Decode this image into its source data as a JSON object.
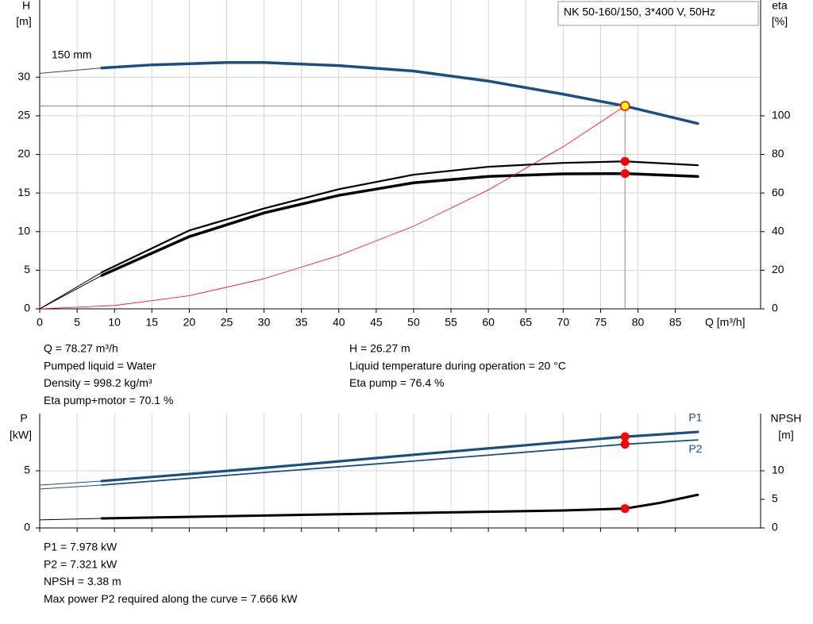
{
  "chart_data": [
    {
      "type": "line",
      "title": "NK 50-160/150, 3*400 V, 50Hz",
      "xlabel": "Q [m³/h]",
      "ylabel": "H",
      "yunit": "[m]",
      "y2label": "eta",
      "y2unit": "[%]",
      "xlim": [
        0,
        96.4
      ],
      "xticks": [
        0,
        5,
        10,
        15,
        20,
        25,
        30,
        35,
        40,
        45,
        50,
        55,
        60,
        65,
        70,
        75,
        80,
        85
      ],
      "ylim": [
        0,
        40
      ],
      "yticks": [
        0,
        5,
        10,
        15,
        20,
        25,
        30
      ],
      "y2lim": [
        0,
        160
      ],
      "y2ticks": [
        0,
        20,
        40,
        60,
        80,
        100
      ],
      "grid": true,
      "series": [
        {
          "color": "#1a4f86",
          "width": 1,
          "x": [
            0,
            8.3
          ],
          "values": [
            30.5,
            31.2
          ]
        },
        {
          "label": "150 mm",
          "color": "#1a4f86",
          "width": 3.5,
          "x": [
            8.3,
            15,
            25,
            30,
            40,
            50,
            60,
            70,
            78.27,
            88
          ],
          "values": [
            31.2,
            31.6,
            31.9,
            31.9,
            31.5,
            30.8,
            29.5,
            27.8,
            26.27,
            24.0
          ]
        },
        {
          "color": "#000000",
          "width": 1,
          "axis": "y2",
          "x": [
            0,
            8.3
          ],
          "values": [
            0,
            18.9
          ]
        },
        {
          "color": "#000000",
          "width": 1,
          "axis": "y2",
          "x": [
            0,
            8.3
          ],
          "values": [
            0,
            17.3
          ]
        },
        {
          "color": "#000000",
          "width": 2.2,
          "axis": "y2",
          "x": [
            8.3,
            20,
            30,
            40,
            50,
            60,
            70,
            78.27,
            88
          ],
          "values": [
            18.9,
            40.6,
            52,
            62,
            69.5,
            73.6,
            75.6,
            76.4,
            74.4
          ]
        },
        {
          "color": "#000000",
          "width": 3.5,
          "axis": "y2",
          "x": [
            8.3,
            20,
            30,
            40,
            50,
            60,
            70,
            78.27,
            88
          ],
          "values": [
            17.3,
            37.4,
            49.7,
            58.8,
            65.3,
            68.6,
            69.9,
            70.1,
            68.6
          ]
        },
        {
          "color": "#ff0000",
          "width": 0.8,
          "x": [
            0,
            10,
            20,
            30,
            40,
            50,
            60,
            70,
            78.27
          ],
          "values": [
            0,
            0.43,
            1.7,
            3.9,
            6.9,
            10.7,
            15.4,
            21.0,
            26.27
          ]
        },
        {
          "marker": "#ffff00",
          "edgecolor": "#ff0000",
          "guides": true,
          "x": [
            78.27
          ],
          "values": [
            26.27
          ]
        },
        {
          "marker": "#ff0000",
          "axis": "y2",
          "x": [
            78.27
          ],
          "values": [
            76.4
          ]
        },
        {
          "marker": "#ff0000",
          "axis": "y2",
          "x": [
            78.27
          ],
          "values": [
            70.1
          ]
        }
      ]
    },
    {
      "type": "line",
      "ylabel": "P",
      "yunit": "[kW]",
      "y2label": "NPSH",
      "y2unit": "[m]",
      "xlim": [
        0,
        96.4
      ],
      "xticks": [
        0,
        5,
        10,
        15,
        20,
        25,
        30,
        35,
        40,
        45,
        50,
        55,
        60,
        65,
        70,
        75,
        80,
        85
      ],
      "xtick_labels": false,
      "ylim": [
        0,
        10
      ],
      "yticks": [
        0,
        5
      ],
      "y2lim": [
        0,
        20
      ],
      "y2ticks": [
        0,
        5,
        10
      ],
      "grid": true,
      "series": [
        {
          "color": "#1a4f86",
          "width": 1,
          "x": [
            0,
            8.3
          ],
          "values": [
            3.75,
            4.1
          ]
        },
        {
          "name": "P1",
          "color": "#1a4f86",
          "width": 3.2,
          "x": [
            8.3,
            30,
            50,
            78.27,
            88
          ],
          "values": [
            4.1,
            5.25,
            6.4,
            7.978,
            8.4
          ]
        },
        {
          "color": "#1a4f86",
          "width": 1,
          "x": [
            0,
            8.3
          ],
          "values": [
            3.4,
            3.75
          ]
        },
        {
          "name": "P2",
          "color": "#1a4f86",
          "width": 1.8,
          "x": [
            8.3,
            30,
            50,
            78.27,
            88
          ],
          "values": [
            3.75,
            4.85,
            5.85,
            7.321,
            7.7
          ]
        },
        {
          "color": "#000000",
          "width": 1,
          "axis": "y2",
          "x": [
            0,
            8.3
          ],
          "values": [
            1.4,
            1.67
          ]
        },
        {
          "color": "#000000",
          "width": 3,
          "axis": "y2",
          "x": [
            8.3,
            40,
            70,
            78.27,
            83,
            88
          ],
          "values": [
            1.67,
            2.4,
            3.05,
            3.38,
            4.4,
            5.8
          ]
        },
        {
          "marker": "#ff0000",
          "x": [
            78.27
          ],
          "values": [
            7.978
          ]
        },
        {
          "marker": "#ff0000",
          "x": [
            78.27
          ],
          "values": [
            7.321
          ]
        },
        {
          "marker": "#ff0000",
          "axis": "y2",
          "x": [
            78.27
          ],
          "values": [
            3.38
          ]
        }
      ]
    }
  ],
  "info_top": {
    "left": [
      "Q = 78.27 m³/h",
      "Pumped liquid = Water",
      "Density = 998.2 kg/m³",
      "Eta pump+motor = 70.1 %"
    ],
    "right": [
      "H = 26.27 m",
      "Liquid temperature during operation = 20 °C",
      "Eta pump = 76.4 %"
    ]
  },
  "info_bottom": [
    "P1 = 7.978 kW",
    "P2 = 7.321 kW",
    "NPSH = 3.38 m",
    "Max power P2 required along the curve = 7.666 kW"
  ]
}
